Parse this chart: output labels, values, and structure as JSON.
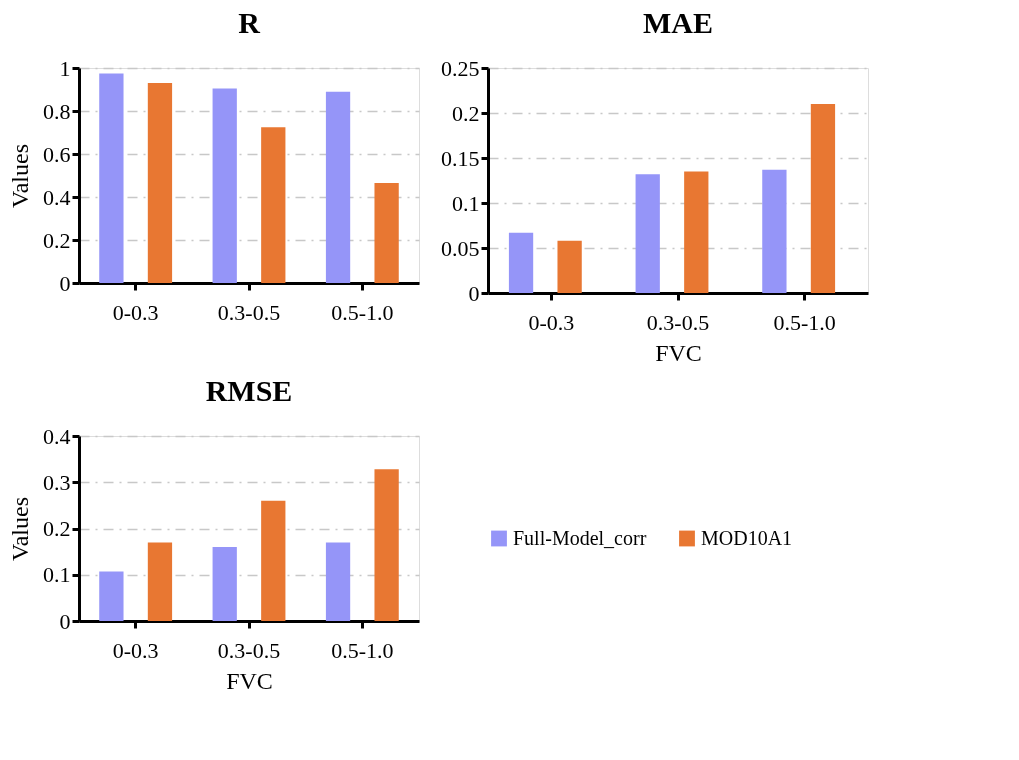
{
  "chart_data": [
    {
      "type": "bar",
      "title": "R",
      "ylabel": "Values",
      "categories": [
        "0-0.3",
        "0.3-0.5",
        "0.5-1.0"
      ],
      "series": [
        {
          "color": "#9595f8",
          "values": [
            0.975,
            0.905,
            0.89
          ]
        },
        {
          "color": "#e87732",
          "values": [
            0.93,
            0.725,
            0.465
          ]
        }
      ],
      "ylim": [
        0,
        1
      ],
      "yticks": [
        0,
        0.2,
        0.4,
        0.6,
        0.8,
        1
      ],
      "grid": "y"
    },
    {
      "type": "bar",
      "title": "MAE",
      "xlabel": "FVC",
      "categories": [
        "0-0.3",
        "0.3-0.5",
        "0.5-1.0"
      ],
      "series": [
        {
          "color": "#9595f8",
          "values": [
            0.067,
            0.132,
            0.137
          ]
        },
        {
          "color": "#e87732",
          "values": [
            0.058,
            0.135,
            0.21
          ]
        }
      ],
      "ylim": [
        0,
        0.25
      ],
      "yticks": [
        0,
        0.05,
        0.1,
        0.15,
        0.2,
        0.25
      ],
      "grid": "y"
    },
    {
      "type": "bar",
      "title": "RMSE",
      "xlabel": "FVC",
      "ylabel": "Values",
      "categories": [
        "0-0.3",
        "0.3-0.5",
        "0.5-1.0"
      ],
      "series": [
        {
          "name": "Full-Model_corr",
          "color": "#9595f8",
          "values": [
            0.107,
            0.16,
            0.17
          ]
        },
        {
          "name": "MOD10A1",
          "color": "#e87732",
          "values": [
            0.17,
            0.26,
            0.328
          ]
        }
      ],
      "ylim": [
        0,
        0.4
      ],
      "yticks": [
        0,
        0.1,
        0.2,
        0.3,
        0.4
      ],
      "grid": "y",
      "legend": "right"
    }
  ]
}
